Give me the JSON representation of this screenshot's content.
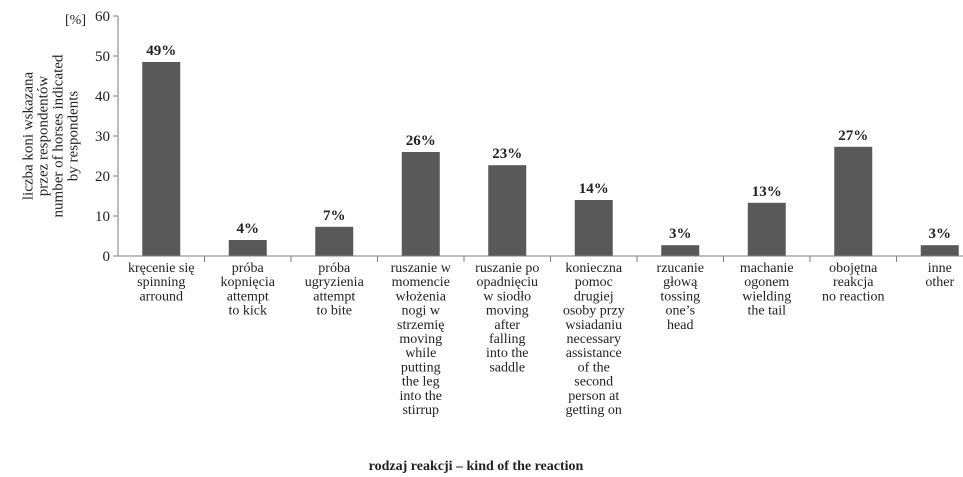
{
  "chart_data": {
    "type": "bar",
    "y_unit": "[%]",
    "ylabel_lines": [
      "liczba koni wskazana",
      "przez respondentów",
      "number of horses indicated",
      "by respondents"
    ],
    "xlabel": "rodzaj reakcji – kind of the reaction",
    "ylim": [
      0,
      60
    ],
    "yticks": [
      0,
      10,
      20,
      30,
      40,
      50,
      60
    ],
    "grid": false,
    "legend": "none",
    "colors": {
      "bar": "#595959",
      "axis": "#7f7f7f"
    },
    "categories": [
      [
        "kręcenie się",
        "spinning",
        "arround"
      ],
      [
        "próba",
        "kopnięcia",
        "attempt",
        "to kick"
      ],
      [
        "próba",
        "ugryzienia",
        "attempt",
        "to bite"
      ],
      [
        "ruszanie w",
        "momencie",
        "włożenia",
        "nogi w",
        "strzemię",
        "moving",
        "while",
        "putting",
        "the leg",
        "into the",
        "stirrup"
      ],
      [
        "ruszanie po",
        "opadnięciu",
        "w siodło",
        "moving",
        "after",
        "falling",
        "into the",
        "saddle"
      ],
      [
        "konieczna",
        "pomoc",
        "drugiej",
        "osoby przy",
        "wsiadaniu",
        "necessary",
        "assistance",
        "of the",
        "second",
        "person at",
        "getting on"
      ],
      [
        "rzucanie",
        "głową",
        "tossing",
        "one’s",
        "head"
      ],
      [
        "machanie",
        "ogonem",
        "wielding",
        "the tail"
      ],
      [
        "obojętna",
        "reakcja",
        "no reaction"
      ],
      [
        "inne",
        "other"
      ]
    ],
    "values": [
      48.5,
      4,
      7.3,
      26,
      22.7,
      14,
      2.7,
      13.3,
      27.3,
      2.7
    ],
    "data_labels": [
      "49%",
      "4%",
      "7%",
      "26%",
      "23%",
      "14%",
      "3%",
      "13%",
      "27%",
      "3%"
    ]
  }
}
